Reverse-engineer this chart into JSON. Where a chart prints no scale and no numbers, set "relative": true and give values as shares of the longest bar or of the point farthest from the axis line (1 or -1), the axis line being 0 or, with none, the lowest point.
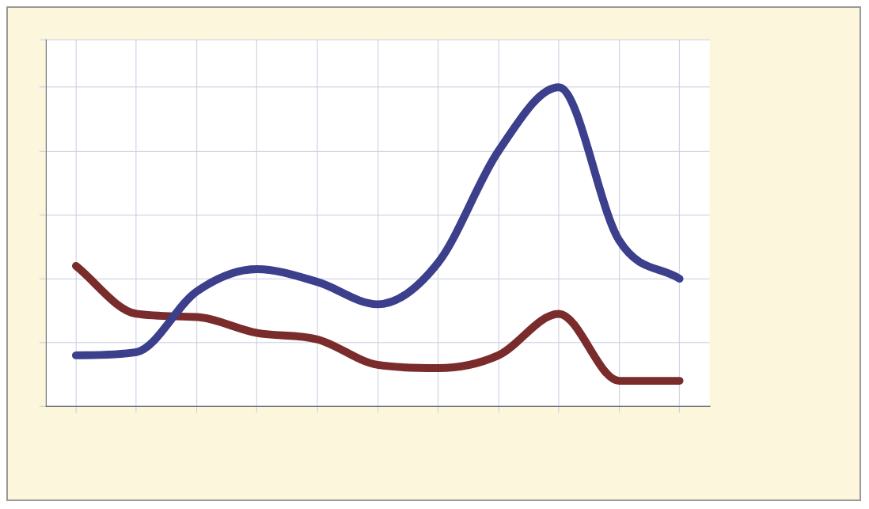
{
  "chart_data": {
    "type": "line",
    "relative": true,
    "grid": true,
    "marker": "none",
    "categories": [
      null,
      null,
      null,
      null,
      null,
      null,
      null,
      null,
      null,
      null,
      null
    ],
    "series": [
      {
        "color": "#3b3f8c",
        "values": [
          0.16,
          0.17,
          0.36,
          0.43,
          0.39,
          0.32,
          0.45,
          0.8,
          1,
          0.52,
          0.4
        ]
      },
      {
        "color": "#7a2b2b",
        "values": [
          0.44,
          0.29,
          0.28,
          0.23,
          0.21,
          0.13,
          0.12,
          0.16,
          0.29,
          0.08,
          0.08
        ]
      }
    ]
  }
}
